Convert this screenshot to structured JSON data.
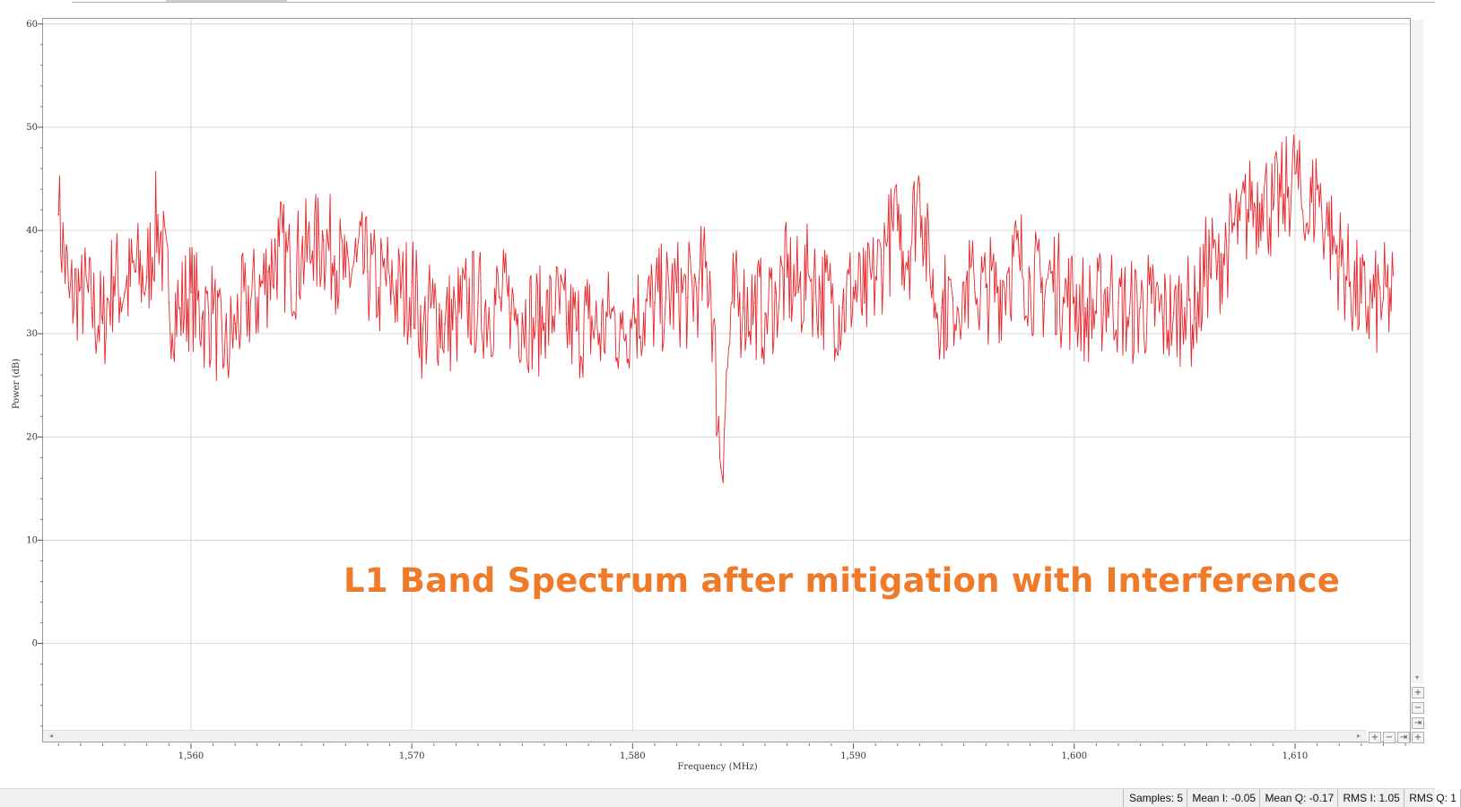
{
  "window": {
    "status": {
      "samples": "Samples: 5",
      "mean_i": "Mean I: -0.05",
      "mean_q": "Mean Q: -0.17",
      "rms_i": "RMS I: 1.05",
      "rms_q": "RMS Q: 1"
    },
    "zoom_buttons": {
      "plus": "+",
      "minus": "−",
      "fit": "⇥",
      "reset": "+"
    },
    "scroll": {
      "left": "◂",
      "right": "▸",
      "down": "▾"
    }
  },
  "colors": {
    "trace": "#e8262b",
    "title": "#ee7a2a",
    "grid": "#d8d8d8"
  },
  "chart_data": {
    "type": "line",
    "title": "L1 Band Spectrum after mitigation with Interference",
    "xlabel": "Frequency (MHz)",
    "ylabel": "Power (dB)",
    "xlim": [
      1553.3,
      1615.2
    ],
    "ylim": [
      -9.5,
      60.5
    ],
    "x_ticks": [
      1560,
      1570,
      1580,
      1590,
      1600,
      1610
    ],
    "x_tick_labels": [
      "1,560",
      "1,570",
      "1,580",
      "1,590",
      "1,600",
      "1,610"
    ],
    "y_ticks": [
      0,
      10,
      20,
      30,
      40,
      50,
      60
    ],
    "y_tick_labels": [
      "0",
      "10",
      "20",
      "30",
      "40",
      "50",
      "60"
    ],
    "grid": true,
    "series": [
      {
        "name": "",
        "x": [
          1554.0,
          1554.5,
          1555.0,
          1555.5,
          1556.0,
          1556.5,
          1557.0,
          1557.5,
          1558.0,
          1558.5,
          1559.0,
          1559.5,
          1560.0,
          1560.5,
          1561.0,
          1561.5,
          1562.0,
          1562.5,
          1563.0,
          1563.5,
          1564.0,
          1564.5,
          1565.0,
          1565.5,
          1566.0,
          1566.5,
          1567.0,
          1567.5,
          1568.0,
          1568.5,
          1569.0,
          1569.5,
          1570.0,
          1570.5,
          1571.0,
          1571.5,
          1572.0,
          1572.5,
          1573.0,
          1573.5,
          1574.0,
          1574.5,
          1575.0,
          1575.5,
          1576.0,
          1576.5,
          1577.0,
          1577.5,
          1578.0,
          1578.5,
          1579.0,
          1579.5,
          1580.0,
          1580.5,
          1581.0,
          1581.5,
          1582.0,
          1582.5,
          1583.0,
          1583.5,
          1584.0,
          1584.5,
          1585.0,
          1585.5,
          1586.0,
          1586.5,
          1587.0,
          1587.5,
          1588.0,
          1588.5,
          1589.0,
          1589.5,
          1590.0,
          1590.5,
          1591.0,
          1591.5,
          1592.0,
          1592.5,
          1593.0,
          1593.5,
          1594.0,
          1594.5,
          1595.0,
          1595.5,
          1596.0,
          1596.5,
          1597.0,
          1597.5,
          1598.0,
          1598.5,
          1599.0,
          1599.5,
          1600.0,
          1600.5,
          1601.0,
          1601.5,
          1602.0,
          1602.5,
          1603.0,
          1603.5,
          1604.0,
          1604.5,
          1605.0,
          1605.5,
          1606.0,
          1606.5,
          1607.0,
          1607.5,
          1608.0,
          1608.5,
          1609.0,
          1609.5,
          1610.0,
          1610.5,
          1611.0,
          1611.5,
          1612.0,
          1612.5,
          1613.0,
          1613.5,
          1614.0
        ],
        "y": [
          41.5,
          33.5,
          34.5,
          32.5,
          31.0,
          35.5,
          34.0,
          36.0,
          35.5,
          41.5,
          33.0,
          32.5,
          34.0,
          31.5,
          32.0,
          27.0,
          31.0,
          33.0,
          33.5,
          36.0,
          38.5,
          36.0,
          37.5,
          38.0,
          39.0,
          37.5,
          35.5,
          37.0,
          36.0,
          34.5,
          35.5,
          33.5,
          35.0,
          30.5,
          32.5,
          31.0,
          31.5,
          33.0,
          33.0,
          32.5,
          33.5,
          32.0,
          32.0,
          31.5,
          31.0,
          32.5,
          31.0,
          30.5,
          31.5,
          30.0,
          31.5,
          30.5,
          32.0,
          32.0,
          33.0,
          33.5,
          34.0,
          33.5,
          35.0,
          36.0,
          17.0,
          33.0,
          32.5,
          33.0,
          32.0,
          34.0,
          35.5,
          34.0,
          35.5,
          34.0,
          33.0,
          32.5,
          34.5,
          33.0,
          35.5,
          38.5,
          40.0,
          38.0,
          44.5,
          34.5,
          32.5,
          33.5,
          35.0,
          34.0,
          34.5,
          34.0,
          36.0,
          37.5,
          35.5,
          34.0,
          36.0,
          33.5,
          33.5,
          32.5,
          32.0,
          34.5,
          33.0,
          32.0,
          32.5,
          33.0,
          31.5,
          32.0,
          32.5,
          31.5,
          36.5,
          37.0,
          39.0,
          41.0,
          42.0,
          43.5,
          42.0,
          43.5,
          45.5,
          40.5,
          44.0,
          39.5,
          37.5,
          35.0,
          33.0,
          32.5,
          33.5
        ]
      }
    ],
    "annotations": []
  }
}
